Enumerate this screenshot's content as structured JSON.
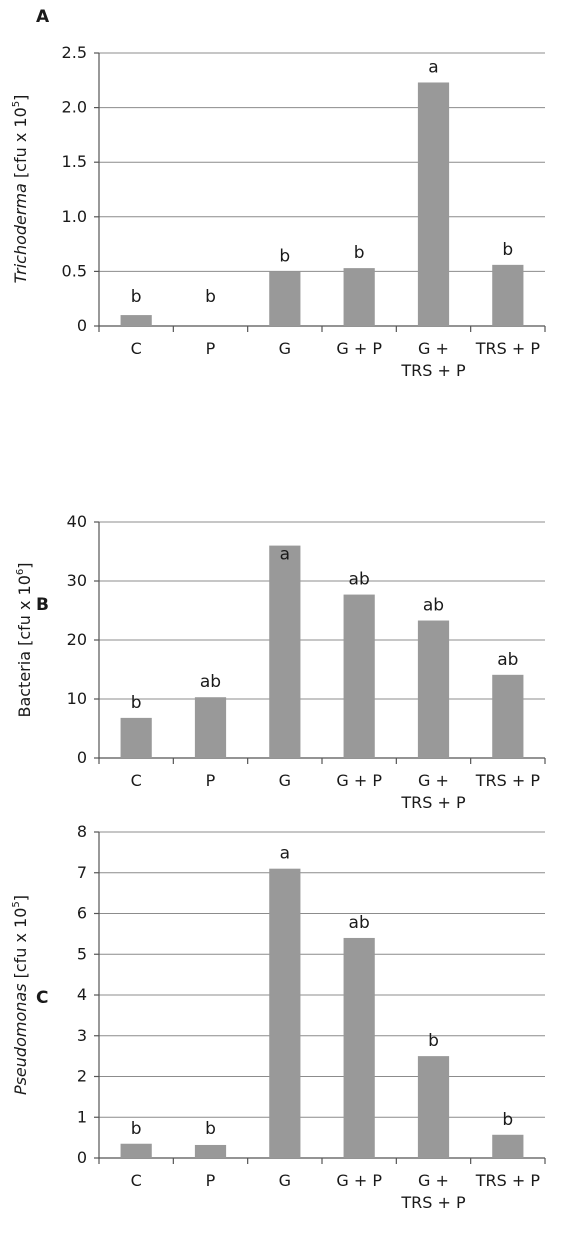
{
  "chart_data": [
    {
      "panel": "A",
      "type": "bar",
      "categories": [
        [
          "C"
        ],
        [
          "P"
        ],
        [
          "G"
        ],
        [
          "G + P"
        ],
        [
          "G +",
          "TRS + P"
        ],
        [
          "TRS + P"
        ]
      ],
      "values": [
        0.1,
        0.0,
        0.5,
        0.53,
        2.23,
        0.56
      ],
      "significance": [
        "b",
        "b",
        "b",
        "b",
        "a",
        "b"
      ],
      "ylabel": {
        "italic": "Trichoderma",
        "text": " [cfu x 10",
        "sup": "5",
        "end": "]"
      },
      "ylim": [
        0,
        2.5
      ],
      "yticks": [
        0,
        0.5,
        1.0,
        1.5,
        2.0,
        2.5
      ],
      "ytick_labels": [
        "0",
        "0.5",
        "1.0",
        "1.5",
        "2.0",
        "2.5"
      ],
      "grid": true
    },
    {
      "panel": "B",
      "type": "bar",
      "categories": [
        [
          "C"
        ],
        [
          "P"
        ],
        [
          "G"
        ],
        [
          "G + P"
        ],
        [
          "G +",
          "TRS + P"
        ],
        [
          "TRS + P"
        ]
      ],
      "values": [
        6.8,
        10.3,
        36.0,
        27.7,
        23.3,
        14.1
      ],
      "significance": [
        "b",
        "ab",
        "a",
        "ab",
        "ab",
        "ab"
      ],
      "ylabel": {
        "italic": "",
        "text": "Bacteria [cfu x 10",
        "sup": "6",
        "end": "]"
      },
      "ylim": [
        0,
        40
      ],
      "yticks": [
        0,
        10,
        20,
        30,
        40
      ],
      "ytick_labels": [
        "0",
        "10",
        "20",
        "30",
        "40"
      ],
      "grid": true
    },
    {
      "panel": "C",
      "type": "bar",
      "categories": [
        [
          "C"
        ],
        [
          "P"
        ],
        [
          "G"
        ],
        [
          "G + P"
        ],
        [
          "G +",
          "TRS + P"
        ],
        [
          "TRS + P"
        ]
      ],
      "values": [
        0.35,
        0.32,
        7.1,
        5.4,
        2.5,
        0.57
      ],
      "significance": [
        "b",
        "b",
        "a",
        "ab",
        "b",
        "b"
      ],
      "ylabel": {
        "italic": "Pseudomonas",
        "text": " [cfu x 10",
        "sup": "5",
        "end": "]"
      },
      "ylim": [
        0,
        8
      ],
      "yticks": [
        0,
        1,
        2,
        3,
        4,
        5,
        6,
        7,
        8
      ],
      "ytick_labels": [
        "0",
        "1",
        "2",
        "3",
        "4",
        "5",
        "6",
        "7",
        "8"
      ],
      "grid": true
    }
  ],
  "colors": {
    "bar": "#999999",
    "grid": "#8c8c8c",
    "axis": "#555555",
    "text": "#1a1a1a"
  }
}
